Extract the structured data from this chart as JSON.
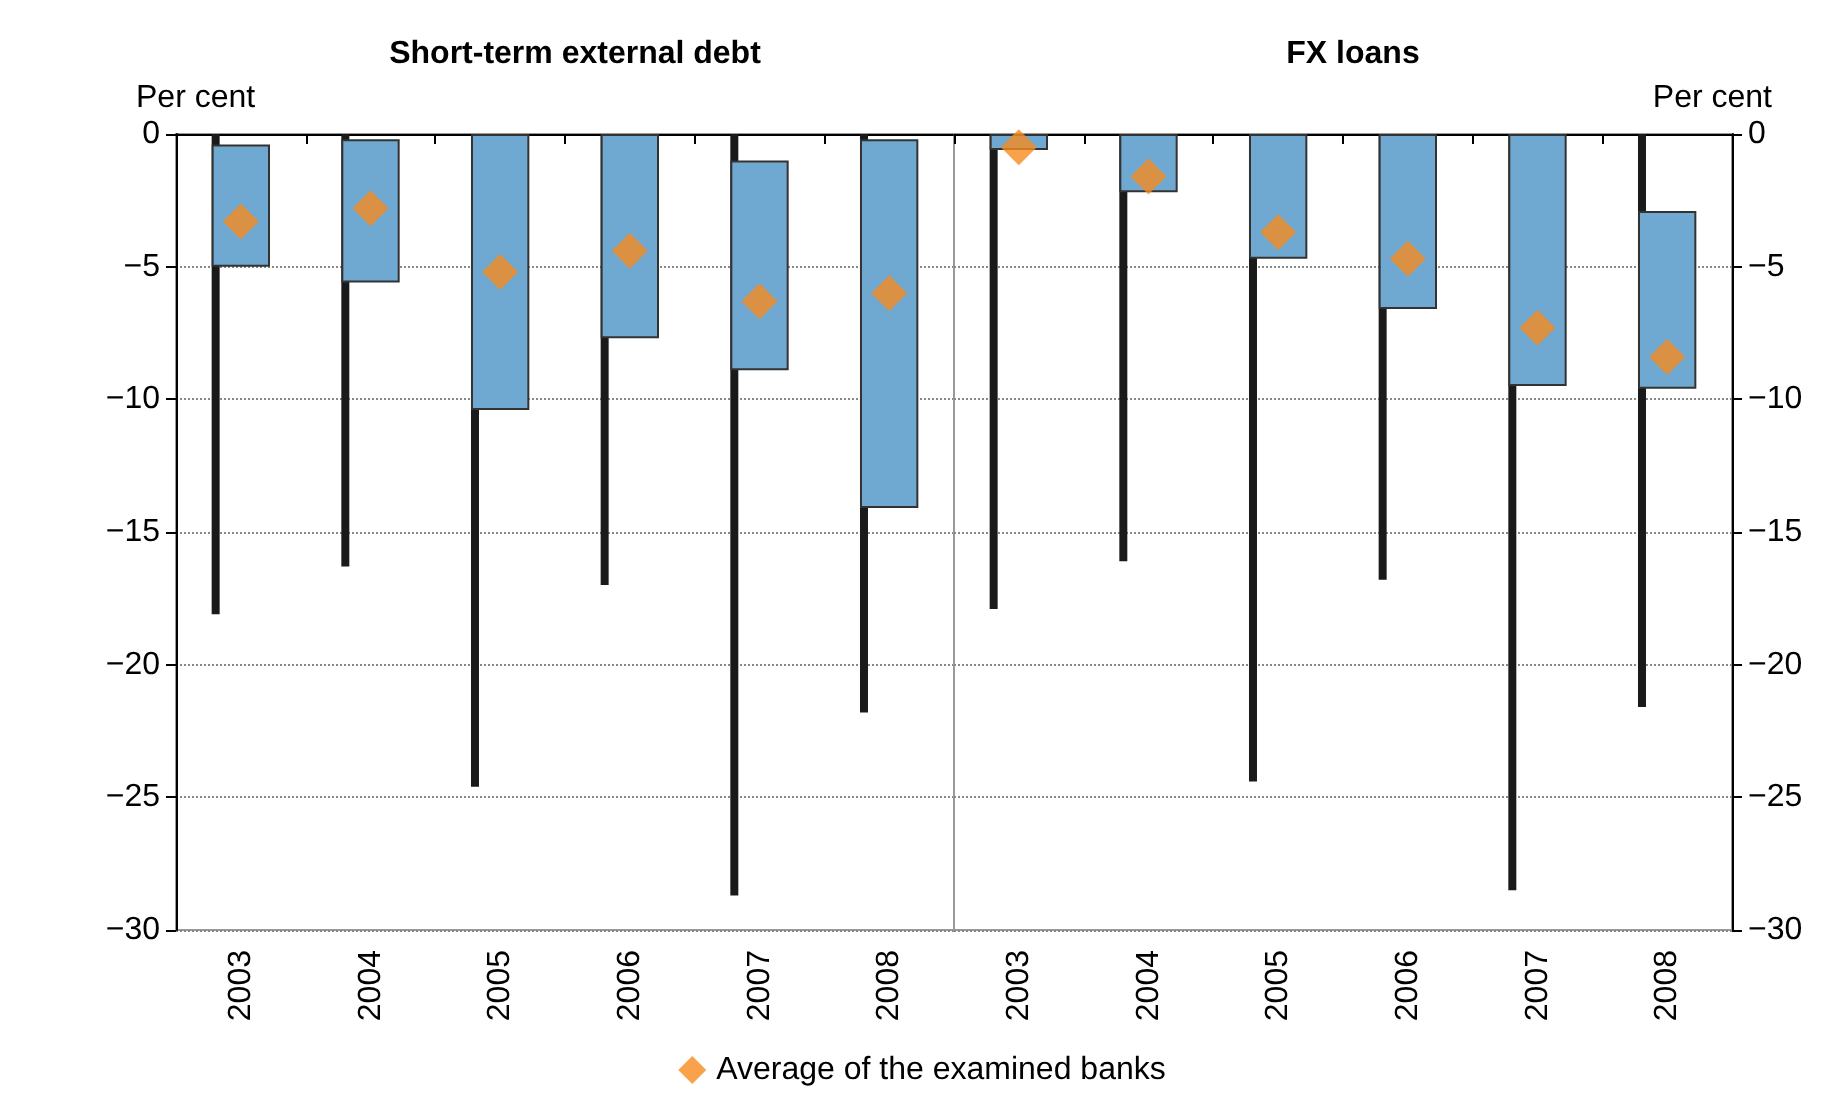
{
  "chart_data": [
    {
      "type": "bar",
      "title": "Short-term external debt",
      "ylabel": "Per cent",
      "categories": [
        "2003",
        "2004",
        "2005",
        "2006",
        "2007",
        "2008"
      ],
      "ylim": [
        -30,
        0
      ],
      "yticks": [
        {
          "value": -30,
          "label": "−30"
        },
        {
          "value": -25,
          "label": "−25"
        },
        {
          "value": -20,
          "label": "−20"
        },
        {
          "value": -15,
          "label": "−15"
        },
        {
          "value": -10,
          "label": "−10"
        },
        {
          "value": -5,
          "label": "−5"
        },
        0
      ],
      "grid": "y",
      "series": [
        {
          "color": "#1a1a1a",
          "base": [
            0,
            0,
            0,
            0,
            0,
            0
          ],
          "values": [
            -18.1,
            -16.3,
            -24.6,
            -17.0,
            -28.7,
            -21.8
          ]
        },
        {
          "color": "#6fa8d0",
          "base": [
            -0.4,
            -0.2,
            0,
            0,
            -1.0,
            -0.2
          ],
          "values": [
            -4.6,
            -5.4,
            -10.4,
            -7.7,
            -7.9,
            -13.9
          ]
        },
        {
          "type": "scatter",
          "color": "#f68b1f",
          "marker": "diamond",
          "values": [
            -3.3,
            -2.8,
            -5.2,
            -4.4,
            -6.3,
            -6.0
          ]
        }
      ]
    },
    {
      "type": "bar",
      "title": "FX loans",
      "y2label": "Per cent",
      "categories": [
        "2003",
        "2004",
        "2005",
        "2006",
        "2007",
        "2008"
      ],
      "y2lim": [
        -30,
        0
      ],
      "y2ticks": [
        {
          "value": -30,
          "label": "−30"
        },
        {
          "value": -25,
          "label": "−25"
        },
        {
          "value": -20,
          "label": "−20"
        },
        {
          "value": -15,
          "label": "−15"
        },
        {
          "value": -10,
          "label": "−10"
        },
        {
          "value": -5,
          "label": "−5"
        },
        0
      ],
      "grid": "y",
      "legend": "bottom",
      "series": [
        {
          "axis": "y2",
          "color": "#1a1a1a",
          "base": [
            0,
            0,
            0,
            0,
            0,
            0
          ],
          "values": [
            -17.9,
            -16.1,
            -24.4,
            -16.8,
            -28.5,
            -21.6
          ]
        },
        {
          "axis": "y2",
          "color": "#6fa8d0",
          "base": [
            0,
            0,
            0,
            0,
            0,
            -2.9
          ],
          "values": [
            -0.6,
            -2.2,
            -4.7,
            -6.6,
            -9.5,
            -6.7
          ]
        },
        {
          "axis": "y2",
          "type": "scatter",
          "name": "Average of the examined banks",
          "color": "#f68b1f",
          "marker": "diamond",
          "values": [
            -0.5,
            -1.6,
            -3.7,
            -4.7,
            -7.3,
            -8.4
          ]
        }
      ]
    }
  ]
}
